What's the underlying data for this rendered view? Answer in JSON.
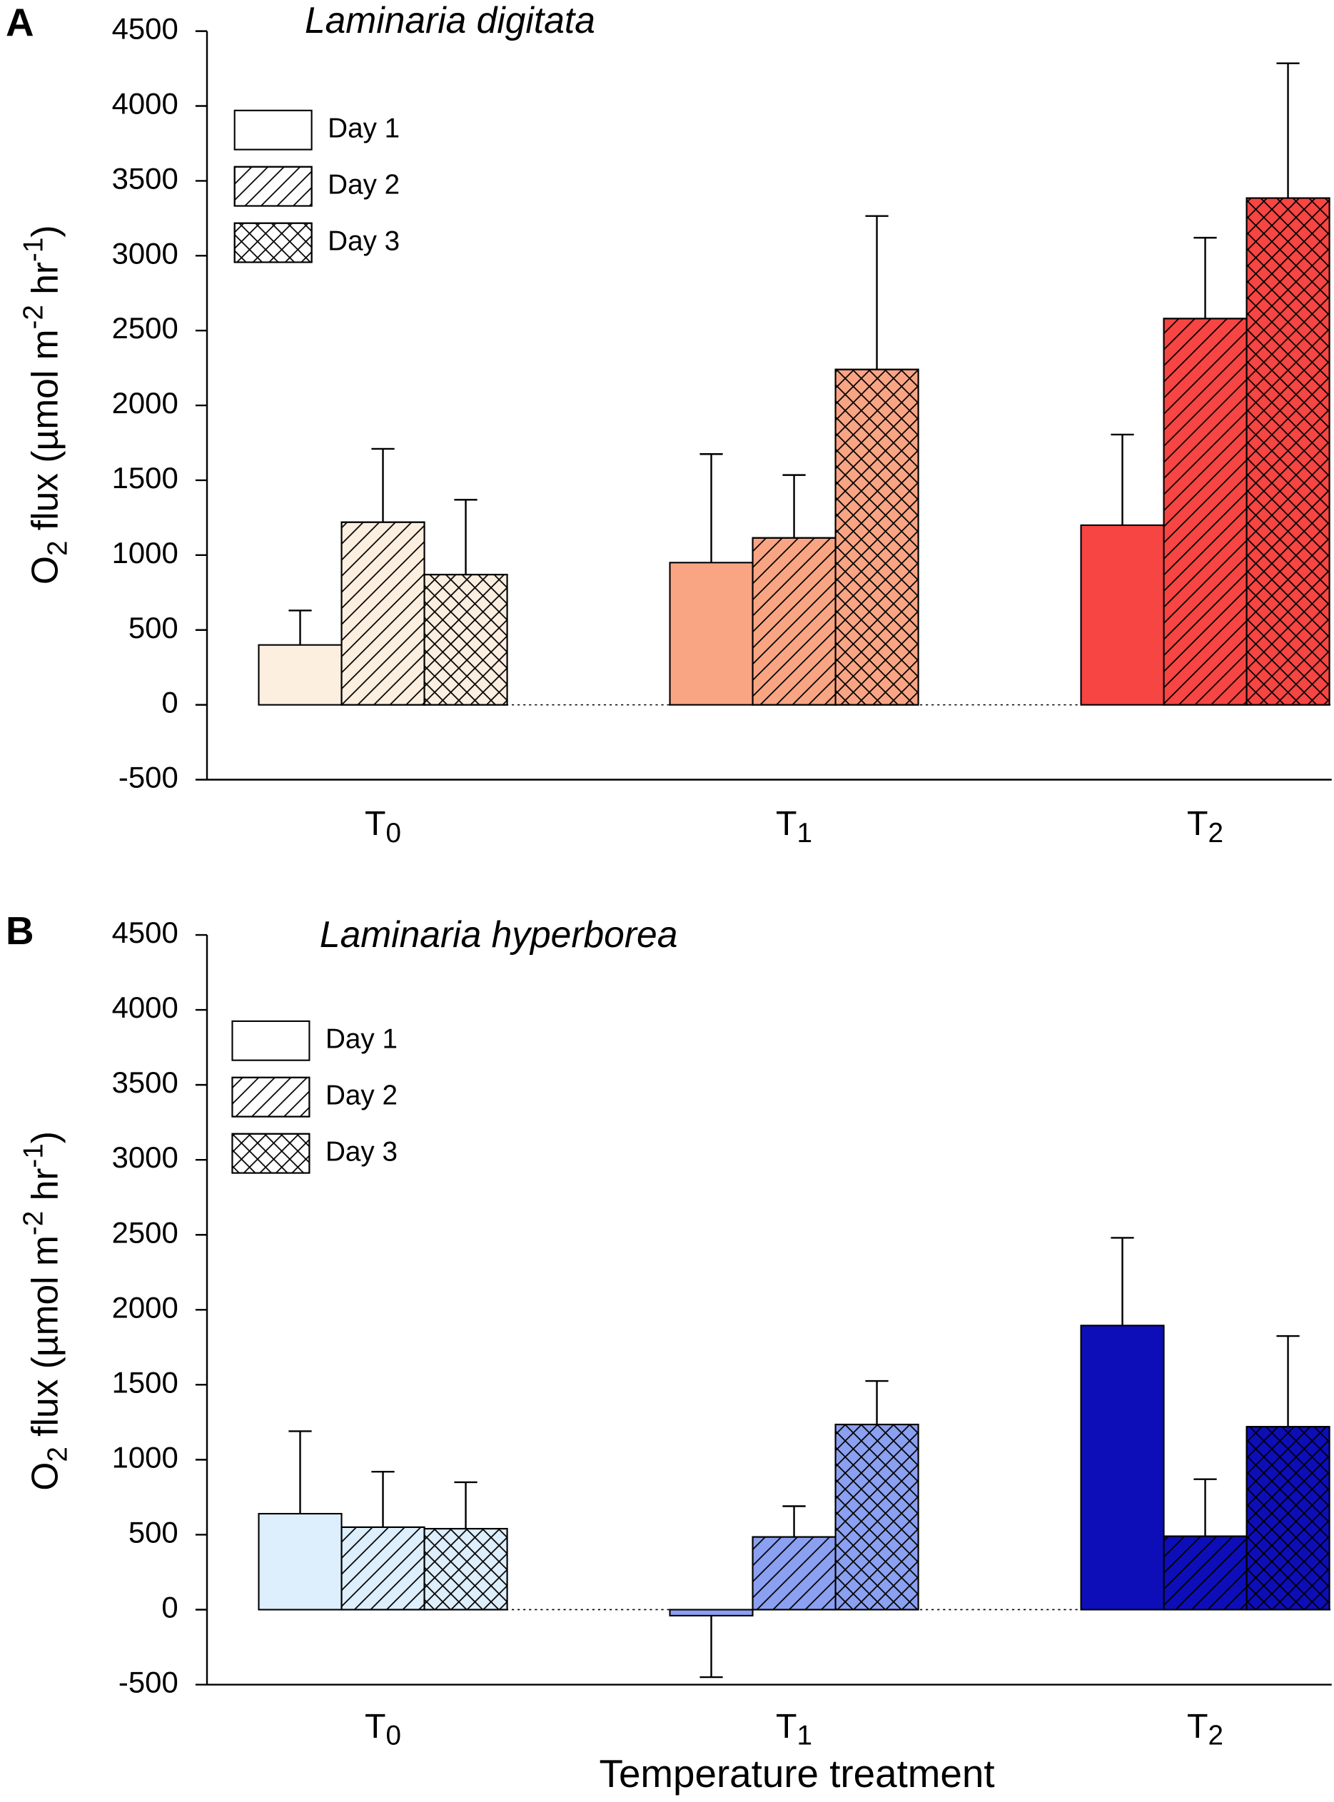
{
  "chart_data": [
    {
      "type": "bar",
      "panel": "A",
      "title": "Laminaria digitata",
      "categories": [
        {
          "text": "T",
          "sub": "0"
        },
        {
          "text": "T",
          "sub": "1"
        },
        {
          "text": "T",
          "sub": "2"
        }
      ],
      "category_colors": [
        "#fdefe0",
        "#f9a584",
        "#f64542"
      ],
      "ylabel": [
        {
          "text": "O"
        },
        {
          "text": "2",
          "shift": "sub"
        },
        {
          "text": " flux (µmol m"
        },
        {
          "text": "-2",
          "shift": "super"
        },
        {
          "text": " hr"
        },
        {
          "text": "-1",
          "shift": "super"
        },
        {
          "text": ")"
        }
      ],
      "series": [
        {
          "name": "Day 1",
          "pattern": "none",
          "values": [
            400,
            950,
            1200
          ],
          "errors": [
            230,
            725,
            605
          ]
        },
        {
          "name": "Day 2",
          "pattern": "hatch",
          "values": [
            1220,
            1115,
            2580
          ],
          "errors": [
            490,
            420,
            540
          ]
        },
        {
          "name": "Day 3",
          "pattern": "crosshatch",
          "values": [
            870,
            2240,
            3385
          ],
          "errors": [
            500,
            1025,
            900
          ]
        }
      ],
      "ylim": [
        -500,
        4500
      ],
      "yticks": [
        -500,
        0,
        500,
        1000,
        1500,
        2000,
        2500,
        3000,
        3500,
        4000,
        4500
      ]
    },
    {
      "type": "bar",
      "panel": "B",
      "title": "Laminaria hyperborea",
      "xlabel": "Temperature treatment",
      "categories": [
        {
          "text": "T",
          "sub": "0"
        },
        {
          "text": "T",
          "sub": "1"
        },
        {
          "text": "T",
          "sub": "2"
        }
      ],
      "category_colors": [
        "#ddeefc",
        "#8ba0f0",
        "#0e0eb8"
      ],
      "ylabel": [
        {
          "text": "O"
        },
        {
          "text": "2",
          "shift": "sub"
        },
        {
          "text": " flux (µmol m"
        },
        {
          "text": "-2",
          "shift": "super"
        },
        {
          "text": " hr"
        },
        {
          "text": "-1",
          "shift": "super"
        },
        {
          "text": ")"
        }
      ],
      "series": [
        {
          "name": "Day 1",
          "pattern": "none",
          "values": [
            640,
            -40,
            1895
          ],
          "errors": [
            550,
            410,
            585
          ]
        },
        {
          "name": "Day 2",
          "pattern": "hatch",
          "values": [
            550,
            485,
            490
          ],
          "errors": [
            370,
            205,
            380
          ]
        },
        {
          "name": "Day 3",
          "pattern": "crosshatch",
          "values": [
            540,
            1235,
            1220
          ],
          "errors": [
            310,
            290,
            605
          ]
        }
      ],
      "ylim": [
        -500,
        4500
      ],
      "yticks": [
        -500,
        0,
        500,
        1000,
        1500,
        2000,
        2500,
        3000,
        3500,
        4000,
        4500
      ]
    }
  ]
}
